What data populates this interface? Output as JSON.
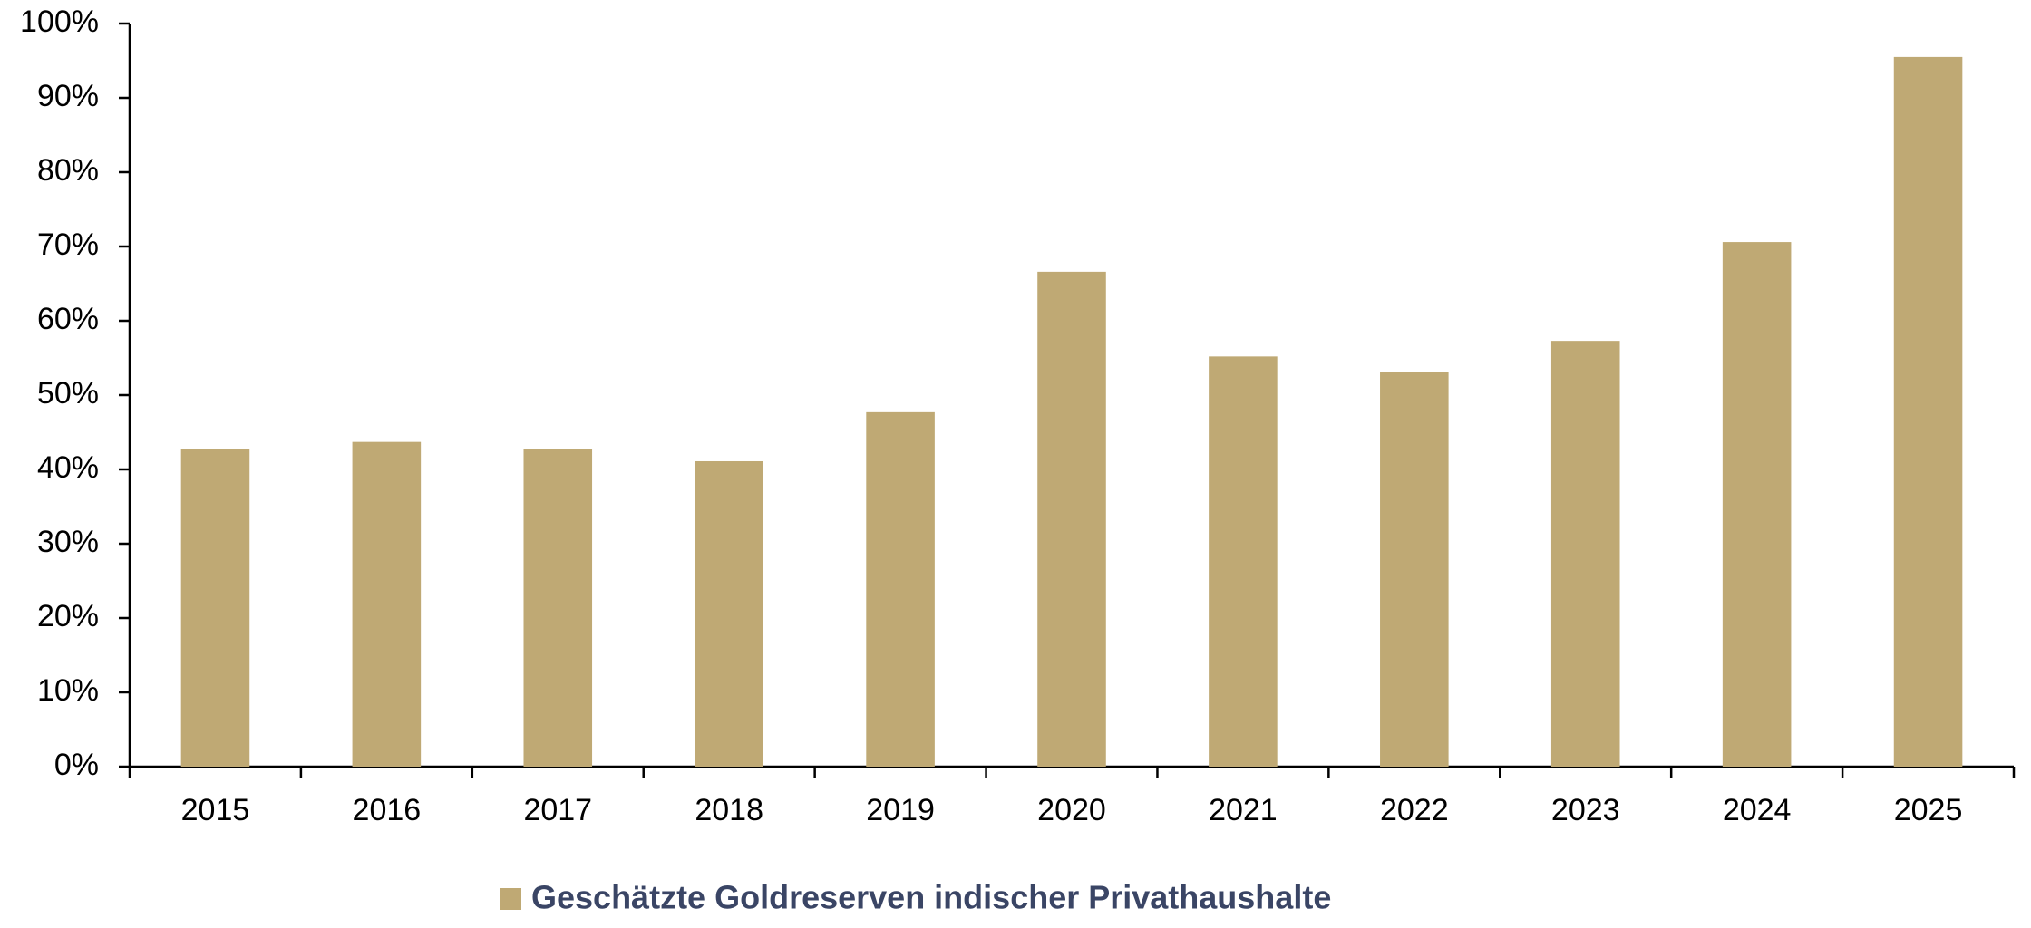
{
  "chart_data": {
    "type": "bar",
    "categories": [
      "2015",
      "2016",
      "2017",
      "2018",
      "2019",
      "2020",
      "2021",
      "2022",
      "2023",
      "2024",
      "2025"
    ],
    "series": [
      {
        "name": "Geschätzte Goldreserven indischer Privathaushalte",
        "color": "#bfa974",
        "values": [
          42.7,
          43.7,
          42.7,
          41.1,
          47.7,
          66.6,
          55.2,
          53.1,
          57.3,
          70.6,
          95.5
        ]
      }
    ],
    "ylim": [
      0,
      100
    ],
    "yticks": [
      {
        "value": 0,
        "label": "0%"
      },
      {
        "value": 10,
        "label": "10%"
      },
      {
        "value": 20,
        "label": "20%"
      },
      {
        "value": 30,
        "label": "30%"
      },
      {
        "value": 40,
        "label": "40%"
      },
      {
        "value": 50,
        "label": "50%"
      },
      {
        "value": 60,
        "label": "60%"
      },
      {
        "value": 70,
        "label": "70%"
      },
      {
        "value": 80,
        "label": "80%"
      },
      {
        "value": 90,
        "label": "90%"
      },
      {
        "value": 100,
        "label": "100%"
      }
    ],
    "grid": false,
    "legend": "bottom"
  }
}
